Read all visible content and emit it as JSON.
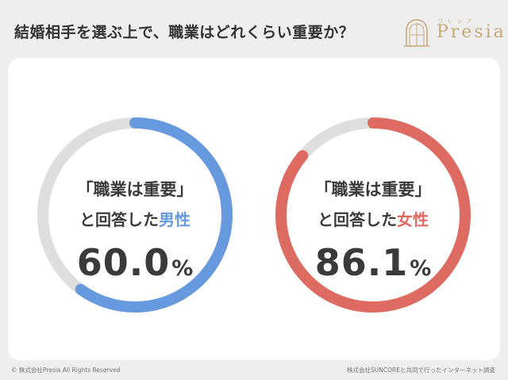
{
  "header": {
    "title": "結婚相手を選ぶ上で、職業はどれくらい重要か？",
    "logo_text": "Presia",
    "logo_ruby": "プレシア"
  },
  "colors": {
    "male": "#6699dd",
    "female": "#dd6b62",
    "track": "#dedede",
    "logo": "#c8a878"
  },
  "chart_data": {
    "type": "donut",
    "unit": "%",
    "series": [
      {
        "name": "男性",
        "line1": "「職業は重要」",
        "line2_prefix": "と回答した",
        "line2_group": "男性",
        "value": 60.0,
        "value_label": "60.0",
        "color": "#6699dd"
      },
      {
        "name": "女性",
        "line1": "「職業は重要」",
        "line2_prefix": "と回答した",
        "line2_group": "女性",
        "value": 86.1,
        "value_label": "86.1",
        "color": "#dd6b62"
      }
    ]
  },
  "footer": {
    "copyright": "© 株式会社Presia All Rights Reserved",
    "source": "株式会社SUNCOREと共同で行ったインターネット調査"
  }
}
